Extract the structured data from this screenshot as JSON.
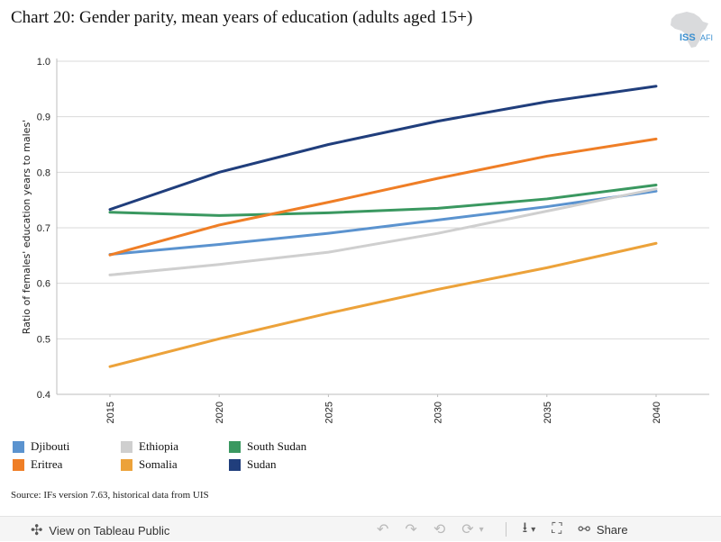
{
  "title": "Chart 20: Gender parity, mean years of education (adults aged 15+)",
  "logo": {
    "text_main": "ISS",
    "text_sub": "AFI",
    "accent": "#3a8fd0"
  },
  "chart_data": {
    "type": "line",
    "title": "Chart 20: Gender parity, mean years of education (adults aged 15+)",
    "xlabel": "",
    "ylabel": "Ratio of females' education years to males'",
    "x": [
      "2015",
      "2020",
      "2025",
      "2030",
      "2035",
      "2040"
    ],
    "ylim": [
      0.4,
      1.0
    ],
    "yticks": [
      "0.4",
      "0.5",
      "0.6",
      "0.7",
      "0.8",
      "0.9",
      "1.0"
    ],
    "grid": true,
    "legend_position": "bottom",
    "series": [
      {
        "name": "Djibouti",
        "color": "#5b93cf",
        "values": [
          0.652,
          0.67,
          0.69,
          0.714,
          0.738,
          0.766
        ]
      },
      {
        "name": "Ethiopia",
        "color": "#cfcfcf",
        "values": [
          0.615,
          0.634,
          0.656,
          0.69,
          0.73,
          0.77
        ]
      },
      {
        "name": "South Sudan",
        "color": "#3a9860",
        "values": [
          0.728,
          0.722,
          0.727,
          0.735,
          0.752,
          0.777
        ]
      },
      {
        "name": "Eritrea",
        "color": "#ef7e26",
        "values": [
          0.651,
          0.705,
          0.746,
          0.789,
          0.829,
          0.86
        ]
      },
      {
        "name": "Somalia",
        "color": "#eca23a",
        "values": [
          0.45,
          0.5,
          0.546,
          0.589,
          0.628,
          0.672
        ]
      },
      {
        "name": "Sudan",
        "color": "#203e7c",
        "values": [
          0.733,
          0.8,
          0.85,
          0.892,
          0.927,
          0.955
        ]
      }
    ]
  },
  "source": "Source: IFs version 7.63, historical data from UIS",
  "footer": {
    "view_label": "View on Tableau Public",
    "share_label": "Share",
    "icons": {
      "view": "tableau-icon",
      "undo": "undo-icon",
      "redo": "redo-icon",
      "revert": "revert-icon",
      "refresh": "refresh-icon",
      "download": "download-icon",
      "fullscreen": "fullscreen-icon",
      "share": "share-icon"
    }
  }
}
